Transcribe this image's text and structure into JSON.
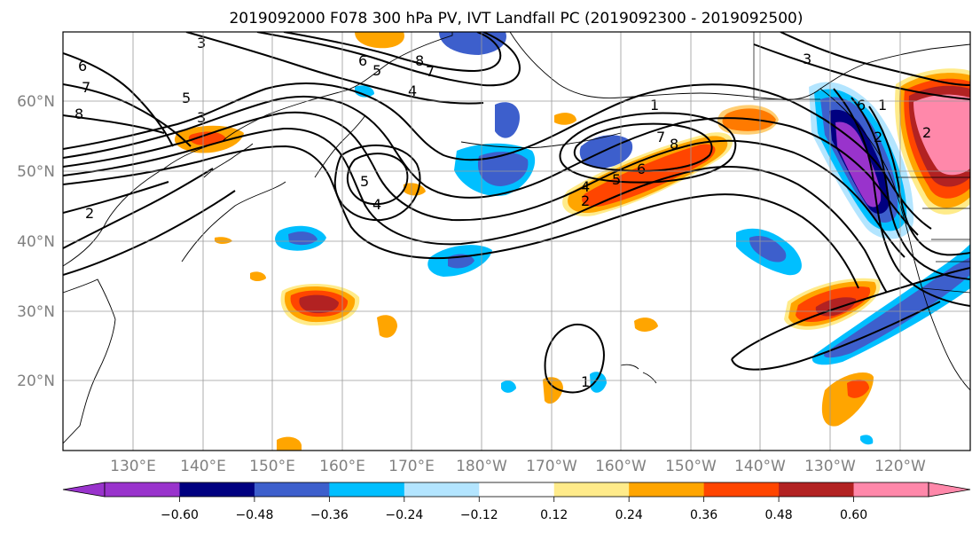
{
  "title": "2019092000 F078 300 hPa PV, IVT Landfall PC (2019092300 - 2019092500)",
  "lat_labels": [
    "60°N",
    "50°N",
    "40°N",
    "30°N",
    "20°N"
  ],
  "lon_labels": [
    "130°E",
    "140°E",
    "150°E",
    "160°E",
    "170°E",
    "180°W",
    "170°W",
    "160°W",
    "150°W",
    "140°W",
    "130°W",
    "120°W"
  ],
  "colorbar": {
    "colors": [
      "#9933cc",
      "#000080",
      "#3d5fcc",
      "#00bfff",
      "#b3e5ff",
      "#ffffff",
      "#ffeb8a",
      "#ffa500",
      "#ff4500",
      "#b22222",
      "#ff88aa"
    ],
    "tick_labels": [
      "−0.60",
      "−0.48",
      "−0.36",
      "−0.24",
      "−0.12",
      "0.12",
      "0.24",
      "0.36",
      "0.48",
      "0.60"
    ]
  },
  "contour_labels": [
    "3",
    "6",
    "7",
    "8",
    "5",
    "3",
    "2",
    "6",
    "5",
    "8",
    "7",
    "4",
    "5",
    "4",
    "1",
    "7",
    "8",
    "4",
    "5",
    "2",
    "6",
    "3",
    "6",
    "1",
    "2",
    "2",
    "1"
  ],
  "palette": {
    "purple": "#9933cc",
    "navy": "#000080",
    "blue": "#3d5fcc",
    "sky": "#00bfff",
    "pale": "#b3e5ff",
    "yellow": "#ffeb8a",
    "orange": "#ffa500",
    "red": "#ff4500",
    "darkred": "#b22222",
    "pink": "#ff88aa"
  }
}
